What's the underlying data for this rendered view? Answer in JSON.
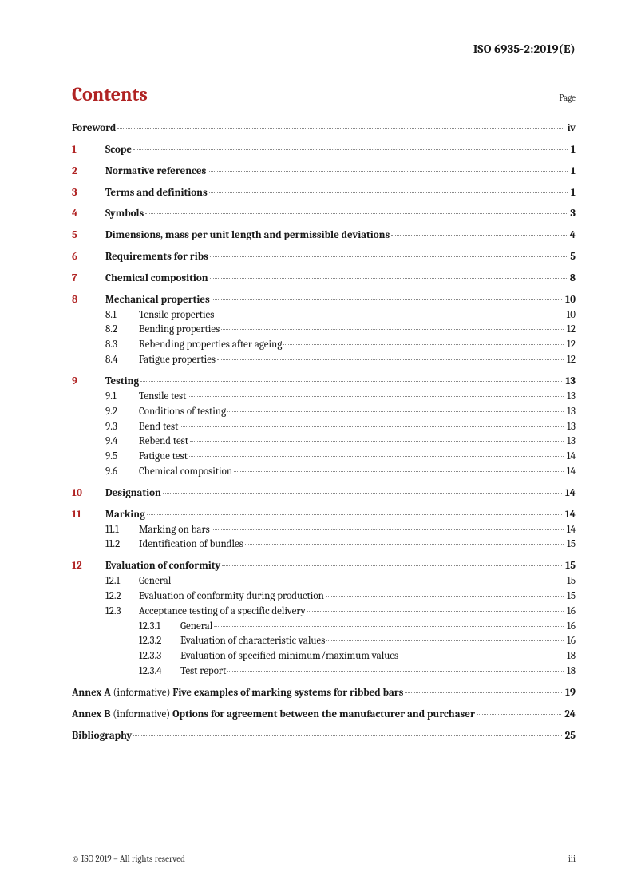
{
  "doc_id": "ISO 6935-2:2019(E)",
  "contents_label": "Contents",
  "page_label": "Page",
  "copyright": "© ISO 2019 – All rights reserved",
  "page_number": "iii",
  "colors": {
    "accent": "#b02323",
    "text": "#191919",
    "leader": "#888888",
    "bg": "#ffffff"
  },
  "typography": {
    "body_size_pt": 10,
    "title_size_pt": 18,
    "docid_size_pt": 11
  },
  "foreword": {
    "title": "Foreword",
    "page": "iv"
  },
  "sections": [
    {
      "num": "1",
      "title": "Scope",
      "page": "1"
    },
    {
      "num": "2",
      "title": "Normative references",
      "page": "1"
    },
    {
      "num": "3",
      "title": "Terms and definitions",
      "page": "1"
    },
    {
      "num": "4",
      "title": "Symbols",
      "page": "3"
    },
    {
      "num": "5",
      "title": "Dimensions, mass per unit length and permissible deviations",
      "page": "4"
    },
    {
      "num": "6",
      "title": "Requirements for ribs",
      "page": "5"
    },
    {
      "num": "7",
      "title": "Chemical composition",
      "page": "8"
    },
    {
      "num": "8",
      "title": "Mechanical properties",
      "page": "10",
      "subs": [
        {
          "num": "8.1",
          "title": "Tensile properties",
          "page": "10"
        },
        {
          "num": "8.2",
          "title": "Bending properties",
          "page": "12"
        },
        {
          "num": "8.3",
          "title": "Rebending properties after ageing",
          "page": "12"
        },
        {
          "num": "8.4",
          "title": "Fatigue properties",
          "page": "12"
        }
      ]
    },
    {
      "num": "9",
      "title": "Testing",
      "page": "13",
      "subs": [
        {
          "num": "9.1",
          "title": "Tensile test",
          "page": "13"
        },
        {
          "num": "9.2",
          "title": "Conditions of testing",
          "page": "13"
        },
        {
          "num": "9.3",
          "title": "Bend test",
          "page": "13"
        },
        {
          "num": "9.4",
          "title": "Rebend test",
          "page": "13"
        },
        {
          "num": "9.5",
          "title": "Fatigue test",
          "page": "14"
        },
        {
          "num": "9.6",
          "title": "Chemical composition",
          "page": "14"
        }
      ]
    },
    {
      "num": "10",
      "title": "Designation",
      "page": "14"
    },
    {
      "num": "11",
      "title": "Marking",
      "page": "14",
      "subs": [
        {
          "num": "11.1",
          "title": "Marking on bars",
          "page": "14"
        },
        {
          "num": "11.2",
          "title": "Identification of bundles",
          "page": "15"
        }
      ]
    },
    {
      "num": "12",
      "title": "Evaluation of conformity",
      "page": "15",
      "subs": [
        {
          "num": "12.1",
          "title": "General",
          "page": "15"
        },
        {
          "num": "12.2",
          "title": "Evaluation of conformity during production",
          "page": "15"
        },
        {
          "num": "12.3",
          "title": "Acceptance testing of a specific delivery",
          "page": "16",
          "subs": [
            {
              "num": "12.3.1",
              "title": "General",
              "page": "16"
            },
            {
              "num": "12.3.2",
              "title": "Evaluation of characteristic values",
              "page": "16"
            },
            {
              "num": "12.3.3",
              "title": "Evaluation of specified minimum/maximum values",
              "page": "18"
            },
            {
              "num": "12.3.4",
              "title": "Test report",
              "page": "18"
            }
          ]
        }
      ]
    }
  ],
  "annexes": [
    {
      "prefix": "Annex A",
      "note": "(informative)",
      "title": "Five examples of marking systems for ribbed bars",
      "page": "19"
    },
    {
      "prefix": "Annex B",
      "note": "(informative)",
      "title": "Options for agreement between the manufacturer and purchaser",
      "page": "24"
    }
  ],
  "biblio": {
    "title": "Bibliography",
    "page": "25"
  }
}
